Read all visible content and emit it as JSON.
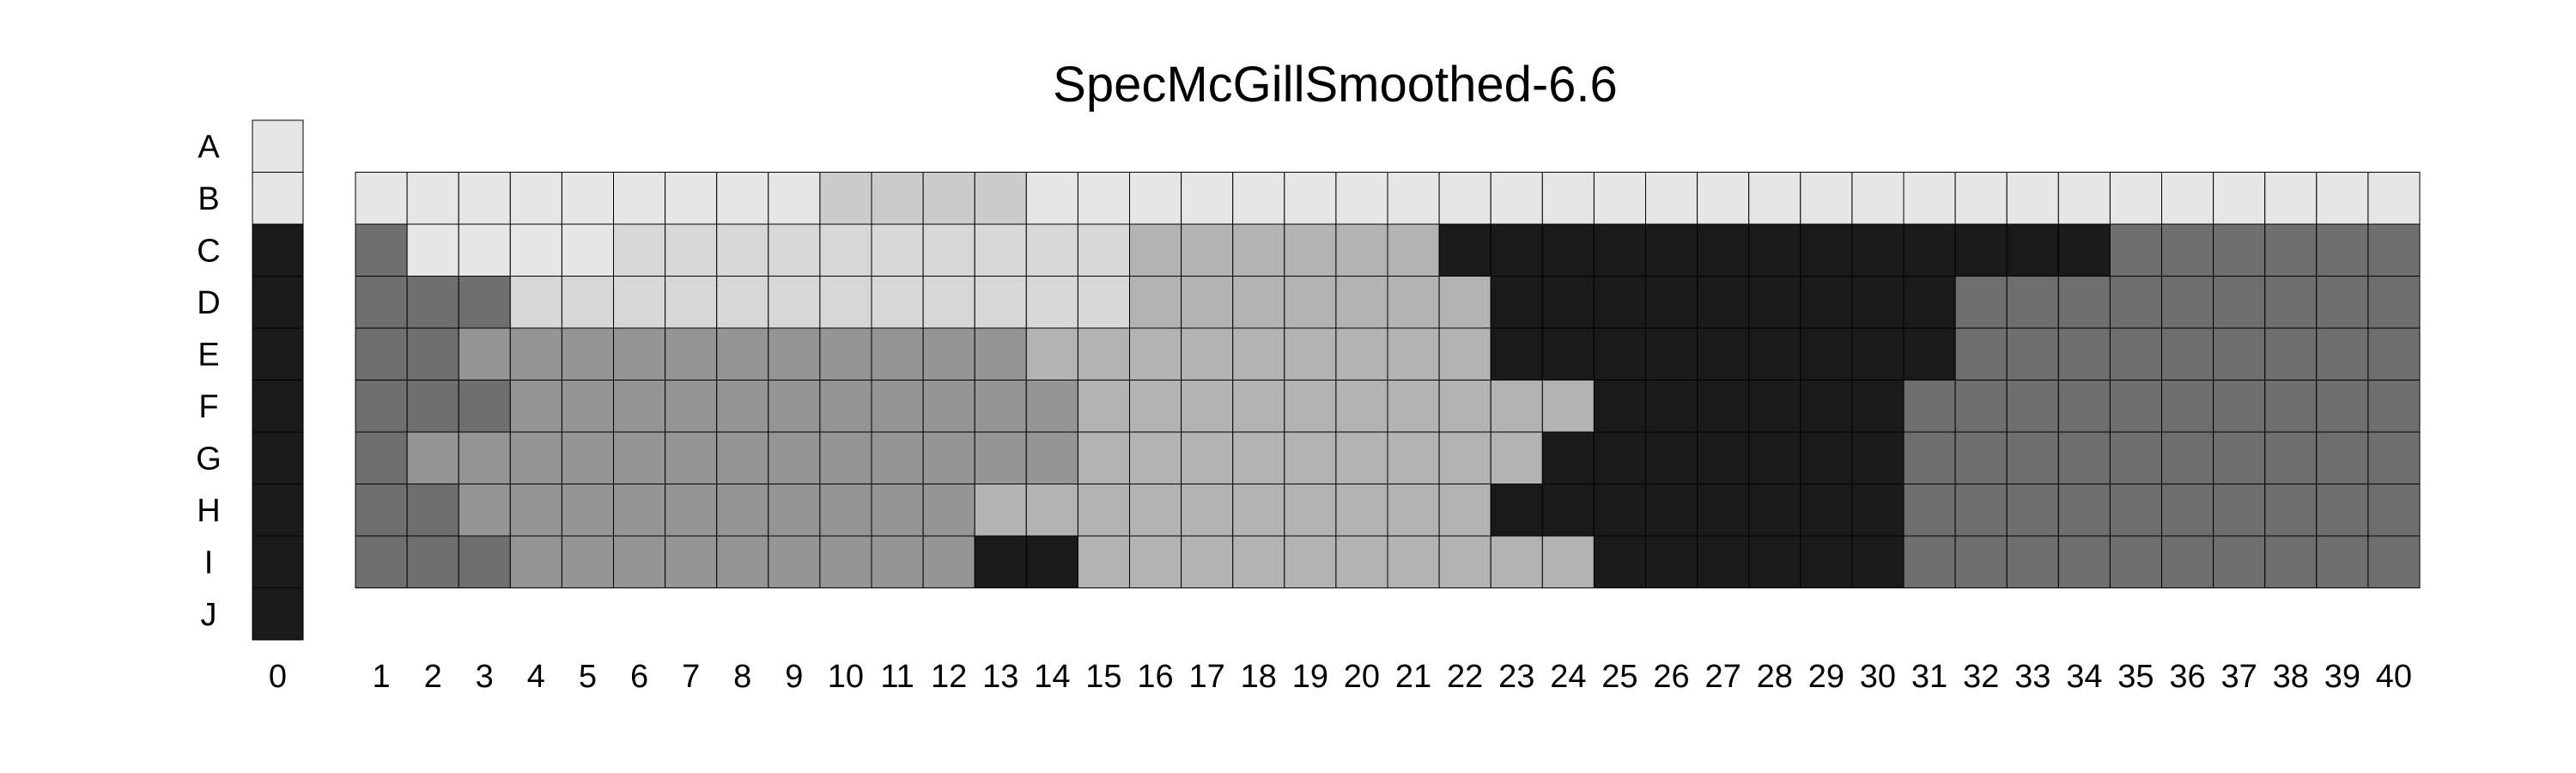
{
  "chart_data": {
    "type": "heatmap",
    "title": "SpecMcGillSmoothed-6.6",
    "xlabel": "",
    "ylabel": "",
    "rows": [
      "A",
      "B",
      "C",
      "D",
      "E",
      "F",
      "G",
      "H",
      "I",
      "J"
    ],
    "col0_label": "0",
    "columns": [
      "1",
      "2",
      "3",
      "4",
      "5",
      "6",
      "7",
      "8",
      "9",
      "10",
      "11",
      "12",
      "13",
      "14",
      "15",
      "16",
      "17",
      "18",
      "19",
      "20",
      "21",
      "22",
      "23",
      "24",
      "25",
      "26",
      "27",
      "28",
      "29",
      "30",
      "31",
      "32",
      "33",
      "34",
      "35",
      "36",
      "37",
      "38",
      "39",
      "40"
    ],
    "grid_rows": [
      "B",
      "C",
      "D",
      "E",
      "F",
      "G",
      "H",
      "I"
    ],
    "palette": {
      "0": "#1a1a1a",
      "1": "#6f6f6f",
      "2": "#959595",
      "3": "#b3b3b3",
      "4": "#cccccc",
      "5": "#d7d7d7",
      "6": "#e6e6e6"
    },
    "col0_values": [
      6,
      6,
      0,
      0,
      0,
      0,
      0,
      0,
      0,
      0
    ],
    "values": [
      [
        6,
        6,
        6,
        6,
        6,
        6,
        6,
        6,
        6,
        4,
        4,
        4,
        4,
        6,
        6,
        6,
        6,
        6,
        6,
        6,
        6,
        6,
        6,
        6,
        6,
        6,
        6,
        6,
        6,
        6,
        6,
        6,
        6,
        6,
        6,
        6,
        6,
        6,
        6,
        6
      ],
      [
        1,
        6,
        6,
        6,
        6,
        5,
        5,
        5,
        5,
        5,
        5,
        5,
        5,
        5,
        5,
        3,
        3,
        3,
        3,
        3,
        3,
        0,
        0,
        0,
        0,
        0,
        0,
        0,
        0,
        0,
        0,
        0,
        0,
        0,
        1,
        1,
        1,
        1,
        1,
        1
      ],
      [
        1,
        1,
        1,
        5,
        5,
        5,
        5,
        5,
        5,
        5,
        5,
        5,
        5,
        5,
        5,
        3,
        3,
        3,
        3,
        3,
        3,
        3,
        0,
        0,
        0,
        0,
        0,
        0,
        0,
        0,
        0,
        1,
        1,
        1,
        1,
        1,
        1,
        1,
        1,
        1
      ],
      [
        1,
        1,
        2,
        2,
        2,
        2,
        2,
        2,
        2,
        2,
        2,
        2,
        2,
        3,
        3,
        3,
        3,
        3,
        3,
        3,
        3,
        3,
        0,
        0,
        0,
        0,
        0,
        0,
        0,
        0,
        0,
        1,
        1,
        1,
        1,
        1,
        1,
        1,
        1,
        1
      ],
      [
        1,
        1,
        1,
        2,
        2,
        2,
        2,
        2,
        2,
        2,
        2,
        2,
        2,
        2,
        3,
        3,
        3,
        3,
        3,
        3,
        3,
        3,
        3,
        3,
        0,
        0,
        0,
        0,
        0,
        0,
        1,
        1,
        1,
        1,
        1,
        1,
        1,
        1,
        1,
        1
      ],
      [
        1,
        2,
        2,
        2,
        2,
        2,
        2,
        2,
        2,
        2,
        2,
        2,
        2,
        2,
        3,
        3,
        3,
        3,
        3,
        3,
        3,
        3,
        3,
        0,
        0,
        0,
        0,
        0,
        0,
        0,
        1,
        1,
        1,
        1,
        1,
        1,
        1,
        1,
        1,
        1
      ],
      [
        1,
        1,
        2,
        2,
        2,
        2,
        2,
        2,
        2,
        2,
        2,
        2,
        3,
        3,
        3,
        3,
        3,
        3,
        3,
        3,
        3,
        3,
        0,
        0,
        0,
        0,
        0,
        0,
        0,
        0,
        1,
        1,
        1,
        1,
        1,
        1,
        1,
        1,
        1,
        1
      ],
      [
        1,
        1,
        1,
        2,
        2,
        2,
        2,
        2,
        2,
        2,
        2,
        2,
        0,
        0,
        3,
        3,
        3,
        3,
        3,
        3,
        3,
        3,
        3,
        3,
        0,
        0,
        0,
        0,
        0,
        0,
        1,
        1,
        1,
        1,
        1,
        1,
        1,
        1,
        1,
        1
      ]
    ]
  }
}
